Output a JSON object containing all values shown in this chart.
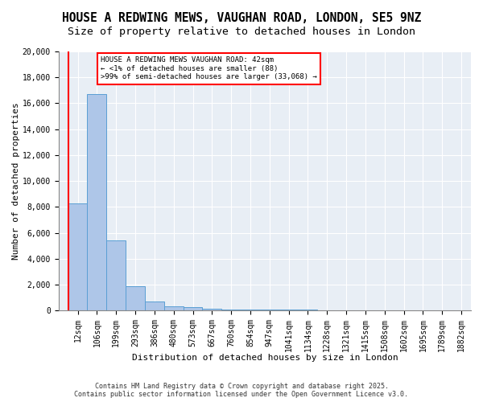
{
  "title_line1": "HOUSE A REDWING MEWS, VAUGHAN ROAD, LONDON, SE5 9NZ",
  "title_line2": "Size of property relative to detached houses in London",
  "xlabel": "Distribution of detached houses by size in London",
  "ylabel": "Number of detached properties",
  "bar_values": [
    8300,
    16700,
    5400,
    1900,
    700,
    350,
    250,
    150,
    100,
    100,
    80,
    70,
    60,
    50,
    50,
    40,
    30,
    20,
    10,
    10,
    5
  ],
  "x_labels": [
    "12sqm",
    "106sqm",
    "199sqm",
    "293sqm",
    "386sqm",
    "480sqm",
    "573sqm",
    "667sqm",
    "760sqm",
    "854sqm",
    "947sqm",
    "1041sqm",
    "1134sqm",
    "1228sqm",
    "1321sqm",
    "1415sqm",
    "1508sqm",
    "1602sqm",
    "1695sqm",
    "1789sqm",
    "1882sqm"
  ],
  "bar_color": "#aec6e8",
  "bar_edge_color": "#5a9fd4",
  "annotation_text": "HOUSE A REDWING MEWS VAUGHAN ROAD: 42sqm\n← <1% of detached houses are smaller (88)\n>99% of semi-detached houses are larger (33,068) →",
  "annotation_box_color": "white",
  "annotation_box_edge_color": "red",
  "ylim": [
    0,
    20000
  ],
  "yticks": [
    0,
    2000,
    4000,
    6000,
    8000,
    10000,
    12000,
    14000,
    16000,
    18000,
    20000
  ],
  "footer_text": "Contains HM Land Registry data © Crown copyright and database right 2025.\nContains public sector information licensed under the Open Government Licence v3.0.",
  "bg_color": "#e8eef5",
  "title_fontsize": 10.5,
  "subtitle_fontsize": 9.5,
  "axis_label_fontsize": 8,
  "tick_fontsize": 7,
  "annotation_fontsize": 6.5,
  "footer_fontsize": 6
}
